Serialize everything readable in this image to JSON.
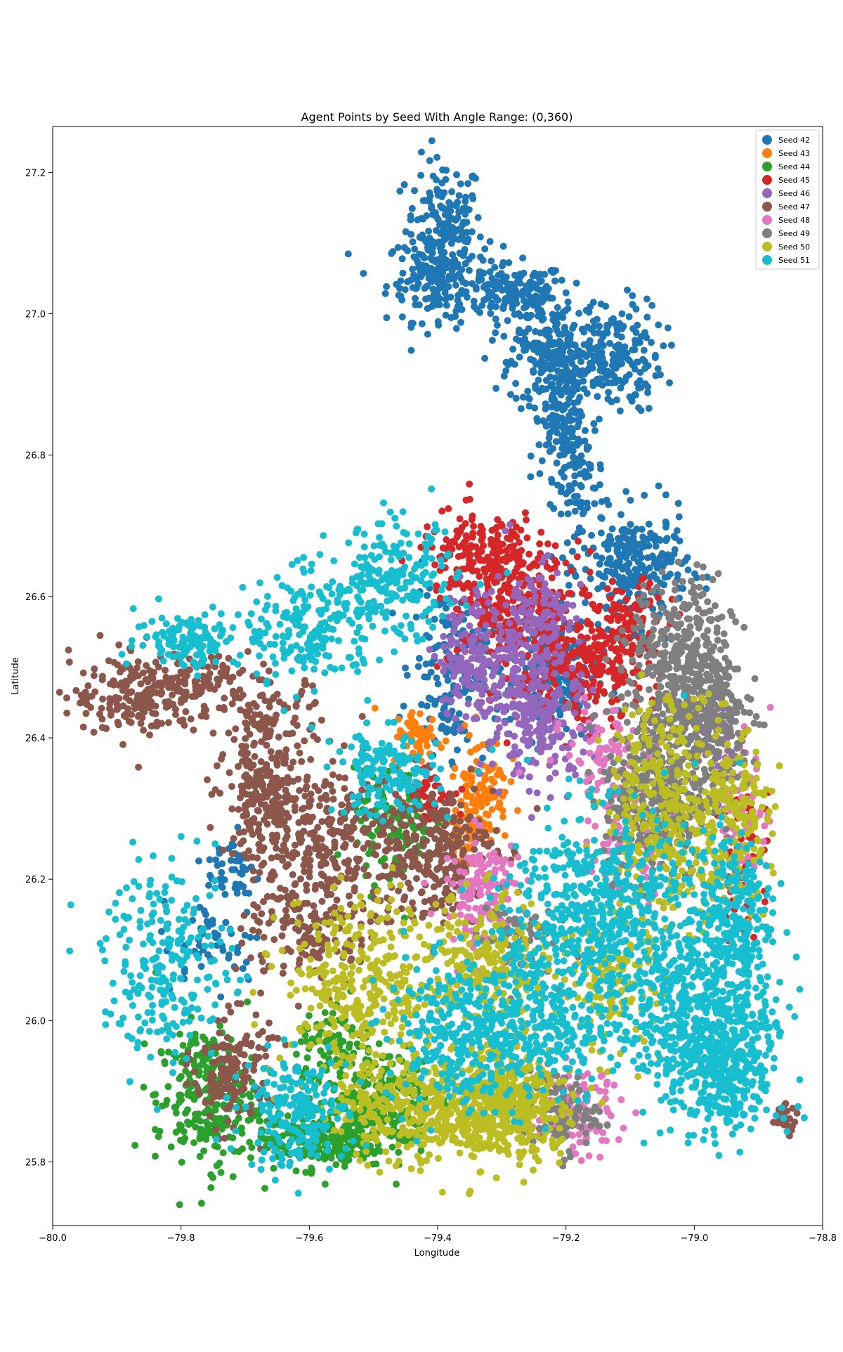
{
  "chart_data": {
    "type": "scatter",
    "title": "Agent Points by Seed With Angle Range: (0,360)",
    "xlabel": "Longitude",
    "ylabel": "Latitude",
    "xlim": [
      -80.0,
      -78.8
    ],
    "ylim": [
      25.71,
      27.265
    ],
    "x_ticks": [
      -80.0,
      -79.8,
      -79.6,
      -79.4,
      -79.2,
      -79.0,
      -78.8
    ],
    "x_tick_labels": [
      "−80.0",
      "−79.8",
      "−79.6",
      "−79.4",
      "−79.2",
      "−79.0",
      "−78.8"
    ],
    "y_ticks": [
      25.8,
      26.0,
      26.2,
      26.4,
      26.6,
      26.8,
      27.0,
      27.2
    ],
    "y_tick_labels": [
      "25.8",
      "26.0",
      "26.2",
      "26.4",
      "26.6",
      "26.8",
      "27.0",
      "27.2"
    ],
    "grid": false,
    "legend_position": "top-right",
    "series": [
      {
        "name": "Seed 42",
        "color": "#1f77b4",
        "regions": [
          {
            "cx": -79.39,
            "cy": 27.12,
            "sx": 0.03,
            "sy": 0.05,
            "n": 170
          },
          {
            "cx": -79.4,
            "cy": 27.05,
            "sx": 0.04,
            "sy": 0.03,
            "n": 160
          },
          {
            "cx": -79.28,
            "cy": 27.03,
            "sx": 0.04,
            "sy": 0.02,
            "n": 130
          },
          {
            "cx": -79.24,
            "cy": 26.99,
            "sx": 0.03,
            "sy": 0.03,
            "n": 90
          },
          {
            "cx": -79.21,
            "cy": 26.93,
            "sx": 0.04,
            "sy": 0.03,
            "n": 170
          },
          {
            "cx": -79.13,
            "cy": 26.94,
            "sx": 0.04,
            "sy": 0.04,
            "n": 180
          },
          {
            "cx": -79.21,
            "cy": 26.85,
            "sx": 0.02,
            "sy": 0.04,
            "n": 110
          },
          {
            "cx": -79.18,
            "cy": 26.76,
            "sx": 0.02,
            "sy": 0.06,
            "n": 100
          },
          {
            "cx": -79.09,
            "cy": 26.64,
            "sx": 0.04,
            "sy": 0.04,
            "n": 240
          },
          {
            "cx": -79.38,
            "cy": 26.5,
            "sx": 0.03,
            "sy": 0.06,
            "n": 160
          },
          {
            "cx": -79.23,
            "cy": 26.48,
            "sx": 0.04,
            "sy": 0.04,
            "n": 160
          },
          {
            "cx": -79.72,
            "cy": 26.21,
            "sx": 0.02,
            "sy": 0.03,
            "n": 50
          },
          {
            "cx": -79.75,
            "cy": 26.11,
            "sx": 0.04,
            "sy": 0.03,
            "n": 50
          }
        ]
      },
      {
        "name": "Seed 43",
        "color": "#ff7f0e",
        "regions": [
          {
            "cx": -79.43,
            "cy": 26.4,
            "sx": 0.02,
            "sy": 0.02,
            "n": 60
          },
          {
            "cx": -79.33,
            "cy": 26.33,
            "sx": 0.02,
            "sy": 0.04,
            "n": 90
          },
          {
            "cx": -79.36,
            "cy": 26.27,
            "sx": 0.02,
            "sy": 0.03,
            "n": 50
          }
        ]
      },
      {
        "name": "Seed 44",
        "color": "#2ca02c",
        "regions": [
          {
            "cx": -79.76,
            "cy": 25.89,
            "sx": 0.04,
            "sy": 0.05,
            "n": 260
          },
          {
            "cx": -79.58,
            "cy": 25.83,
            "sx": 0.05,
            "sy": 0.02,
            "n": 220
          },
          {
            "cx": -79.49,
            "cy": 25.89,
            "sx": 0.04,
            "sy": 0.04,
            "n": 200
          },
          {
            "cx": -79.47,
            "cy": 26.27,
            "sx": 0.03,
            "sy": 0.04,
            "n": 110
          },
          {
            "cx": -79.56,
            "cy": 25.96,
            "sx": 0.03,
            "sy": 0.03,
            "n": 90
          }
        ]
      },
      {
        "name": "Seed 45",
        "color": "#d62728",
        "regions": [
          {
            "cx": -79.33,
            "cy": 26.66,
            "sx": 0.05,
            "sy": 0.03,
            "n": 190
          },
          {
            "cx": -79.28,
            "cy": 26.58,
            "sx": 0.05,
            "sy": 0.04,
            "n": 260
          },
          {
            "cx": -79.18,
            "cy": 26.5,
            "sx": 0.05,
            "sy": 0.04,
            "n": 260
          },
          {
            "cx": -79.1,
            "cy": 26.56,
            "sx": 0.03,
            "sy": 0.03,
            "n": 90
          },
          {
            "cx": -79.41,
            "cy": 26.32,
            "sx": 0.02,
            "sy": 0.02,
            "n": 50
          },
          {
            "cx": -78.92,
            "cy": 26.23,
            "sx": 0.02,
            "sy": 0.05,
            "n": 60
          }
        ]
      },
      {
        "name": "Seed 46",
        "color": "#9467bd",
        "regions": [
          {
            "cx": -79.34,
            "cy": 26.51,
            "sx": 0.03,
            "sy": 0.05,
            "n": 180
          },
          {
            "cx": -79.25,
            "cy": 26.55,
            "sx": 0.03,
            "sy": 0.05,
            "n": 180
          },
          {
            "cx": -79.24,
            "cy": 26.42,
            "sx": 0.04,
            "sy": 0.04,
            "n": 200
          },
          {
            "cx": -78.96,
            "cy": 26.4,
            "sx": 0.02,
            "sy": 0.05,
            "n": 60
          }
        ]
      },
      {
        "name": "Seed 47",
        "color": "#8c564b",
        "regions": [
          {
            "cx": -79.87,
            "cy": 26.46,
            "sx": 0.05,
            "sy": 0.03,
            "n": 190
          },
          {
            "cx": -79.77,
            "cy": 26.48,
            "sx": 0.04,
            "sy": 0.02,
            "n": 110
          },
          {
            "cx": -79.66,
            "cy": 26.42,
            "sx": 0.04,
            "sy": 0.03,
            "n": 100
          },
          {
            "cx": -79.67,
            "cy": 26.31,
            "sx": 0.03,
            "sy": 0.04,
            "n": 200
          },
          {
            "cx": -79.57,
            "cy": 26.26,
            "sx": 0.06,
            "sy": 0.05,
            "n": 260
          },
          {
            "cx": -79.41,
            "cy": 26.24,
            "sx": 0.05,
            "sy": 0.05,
            "n": 280
          },
          {
            "cx": -79.6,
            "cy": 26.13,
            "sx": 0.05,
            "sy": 0.04,
            "n": 150
          },
          {
            "cx": -79.72,
            "cy": 25.93,
            "sx": 0.03,
            "sy": 0.04,
            "n": 150
          },
          {
            "cx": -78.86,
            "cy": 25.86,
            "sx": 0.01,
            "sy": 0.01,
            "n": 30
          }
        ]
      },
      {
        "name": "Seed 48",
        "color": "#e377c2",
        "regions": [
          {
            "cx": -79.33,
            "cy": 26.18,
            "sx": 0.03,
            "sy": 0.04,
            "n": 140
          },
          {
            "cx": -79.14,
            "cy": 26.38,
            "sx": 0.03,
            "sy": 0.03,
            "n": 80
          },
          {
            "cx": -79.19,
            "cy": 25.87,
            "sx": 0.04,
            "sy": 0.03,
            "n": 110
          },
          {
            "cx": -79.1,
            "cy": 26.27,
            "sx": 0.03,
            "sy": 0.05,
            "n": 80
          },
          {
            "cx": -78.92,
            "cy": 26.3,
            "sx": 0.02,
            "sy": 0.06,
            "n": 60
          }
        ]
      },
      {
        "name": "Seed 49",
        "color": "#7f7f7f",
        "regions": [
          {
            "cx": -79.02,
            "cy": 26.5,
            "sx": 0.04,
            "sy": 0.06,
            "n": 420
          },
          {
            "cx": -79.06,
            "cy": 26.32,
            "sx": 0.04,
            "sy": 0.06,
            "n": 360
          },
          {
            "cx": -78.97,
            "cy": 26.42,
            "sx": 0.03,
            "sy": 0.05,
            "n": 180
          },
          {
            "cx": -79.21,
            "cy": 25.87,
            "sx": 0.03,
            "sy": 0.03,
            "n": 100
          },
          {
            "cx": -79.28,
            "cy": 26.12,
            "sx": 0.03,
            "sy": 0.03,
            "n": 60
          }
        ]
      },
      {
        "name": "Seed 50",
        "color": "#bcbd22",
        "regions": [
          {
            "cx": -79.4,
            "cy": 25.88,
            "sx": 0.08,
            "sy": 0.04,
            "n": 520
          },
          {
            "cx": -79.28,
            "cy": 25.88,
            "sx": 0.04,
            "sy": 0.04,
            "n": 300
          },
          {
            "cx": -79.52,
            "cy": 26.05,
            "sx": 0.06,
            "sy": 0.06,
            "n": 320
          },
          {
            "cx": -79.33,
            "cy": 26.07,
            "sx": 0.05,
            "sy": 0.05,
            "n": 260
          },
          {
            "cx": -79.04,
            "cy": 26.3,
            "sx": 0.05,
            "sy": 0.08,
            "n": 360
          },
          {
            "cx": -78.94,
            "cy": 26.28,
            "sx": 0.03,
            "sy": 0.06,
            "n": 180
          },
          {
            "cx": -79.13,
            "cy": 26.05,
            "sx": 0.04,
            "sy": 0.05,
            "n": 150
          }
        ]
      },
      {
        "name": "Seed 51",
        "color": "#17becf",
        "regions": [
          {
            "cx": -79.79,
            "cy": 26.54,
            "sx": 0.04,
            "sy": 0.02,
            "n": 120
          },
          {
            "cx": -79.6,
            "cy": 26.55,
            "sx": 0.05,
            "sy": 0.04,
            "n": 200
          },
          {
            "cx": -79.47,
            "cy": 26.62,
            "sx": 0.05,
            "sy": 0.04,
            "n": 220
          },
          {
            "cx": -79.48,
            "cy": 26.35,
            "sx": 0.04,
            "sy": 0.03,
            "n": 150
          },
          {
            "cx": -79.82,
            "cy": 26.08,
            "sx": 0.05,
            "sy": 0.07,
            "n": 230
          },
          {
            "cx": -79.62,
            "cy": 25.87,
            "sx": 0.04,
            "sy": 0.04,
            "n": 200
          },
          {
            "cx": -79.15,
            "cy": 26.16,
            "sx": 0.07,
            "sy": 0.07,
            "n": 520
          },
          {
            "cx": -79.0,
            "cy": 26.02,
            "sx": 0.06,
            "sy": 0.07,
            "n": 520
          },
          {
            "cx": -78.95,
            "cy": 25.93,
            "sx": 0.04,
            "sy": 0.05,
            "n": 320
          },
          {
            "cx": -79.25,
            "cy": 26.0,
            "sx": 0.06,
            "sy": 0.06,
            "n": 320
          },
          {
            "cx": -79.38,
            "cy": 25.98,
            "sx": 0.05,
            "sy": 0.05,
            "n": 220
          },
          {
            "cx": -78.94,
            "cy": 26.15,
            "sx": 0.03,
            "sy": 0.06,
            "n": 200
          }
        ]
      }
    ]
  }
}
